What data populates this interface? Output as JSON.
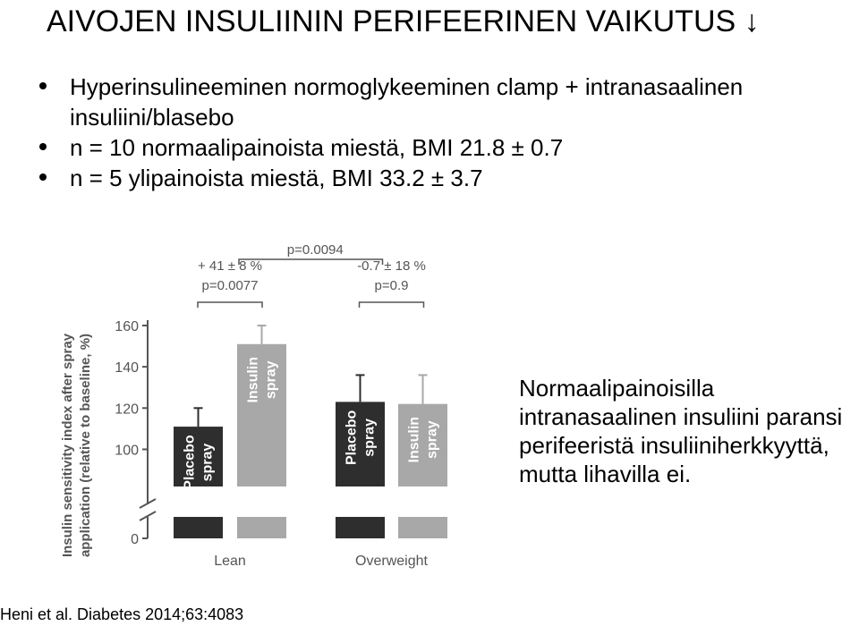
{
  "title": "AIVOJEN INSULIININ PERIFEERINEN VAIKUTUS ↓",
  "bullets": [
    "Hyperinsulineeminen normoglykeeminen clamp + intranasaalinen insuliini/blasebo",
    "n = 10 normaalipainoista miestä, BMI 21.8 ± 0.7",
    "n = 5 ylipainoista miestä, BMI 33.2 ± 3.7"
  ],
  "note": "Normaalipainoisilla intranasaalinen insuliini paransi perifeeristä insuliiniherkkyyttä, mutta lihavilla ei.",
  "citation": "Heni et al. Diabetes 2014;63:4083",
  "colors": {
    "placebo": "#2e2e2e",
    "insulin": "#a8a8a8",
    "axis": "#555555"
  },
  "chart_data": {
    "type": "bar",
    "ylabel": "Insulin sensitivity index after spray application (relative to baseline, %)",
    "ylim": [
      80,
      165
    ],
    "axis_break": true,
    "yticks": [
      0,
      100,
      120,
      140,
      160
    ],
    "categories": [
      "Lean",
      "Overweight"
    ],
    "series": [
      {
        "name": "Placebo spray",
        "values": [
          111,
          123
        ],
        "errors": [
          9,
          13
        ]
      },
      {
        "name": "Insulin spray",
        "values": [
          151,
          122
        ],
        "errors": [
          9,
          14
        ]
      }
    ],
    "annotations": {
      "lean": [
        "+ 41  ± 8 %",
        "p=0.0077"
      ],
      "overweight": [
        "-0.7 ± 18 %",
        "p=0.9"
      ],
      "between": "p=0.0094"
    }
  }
}
